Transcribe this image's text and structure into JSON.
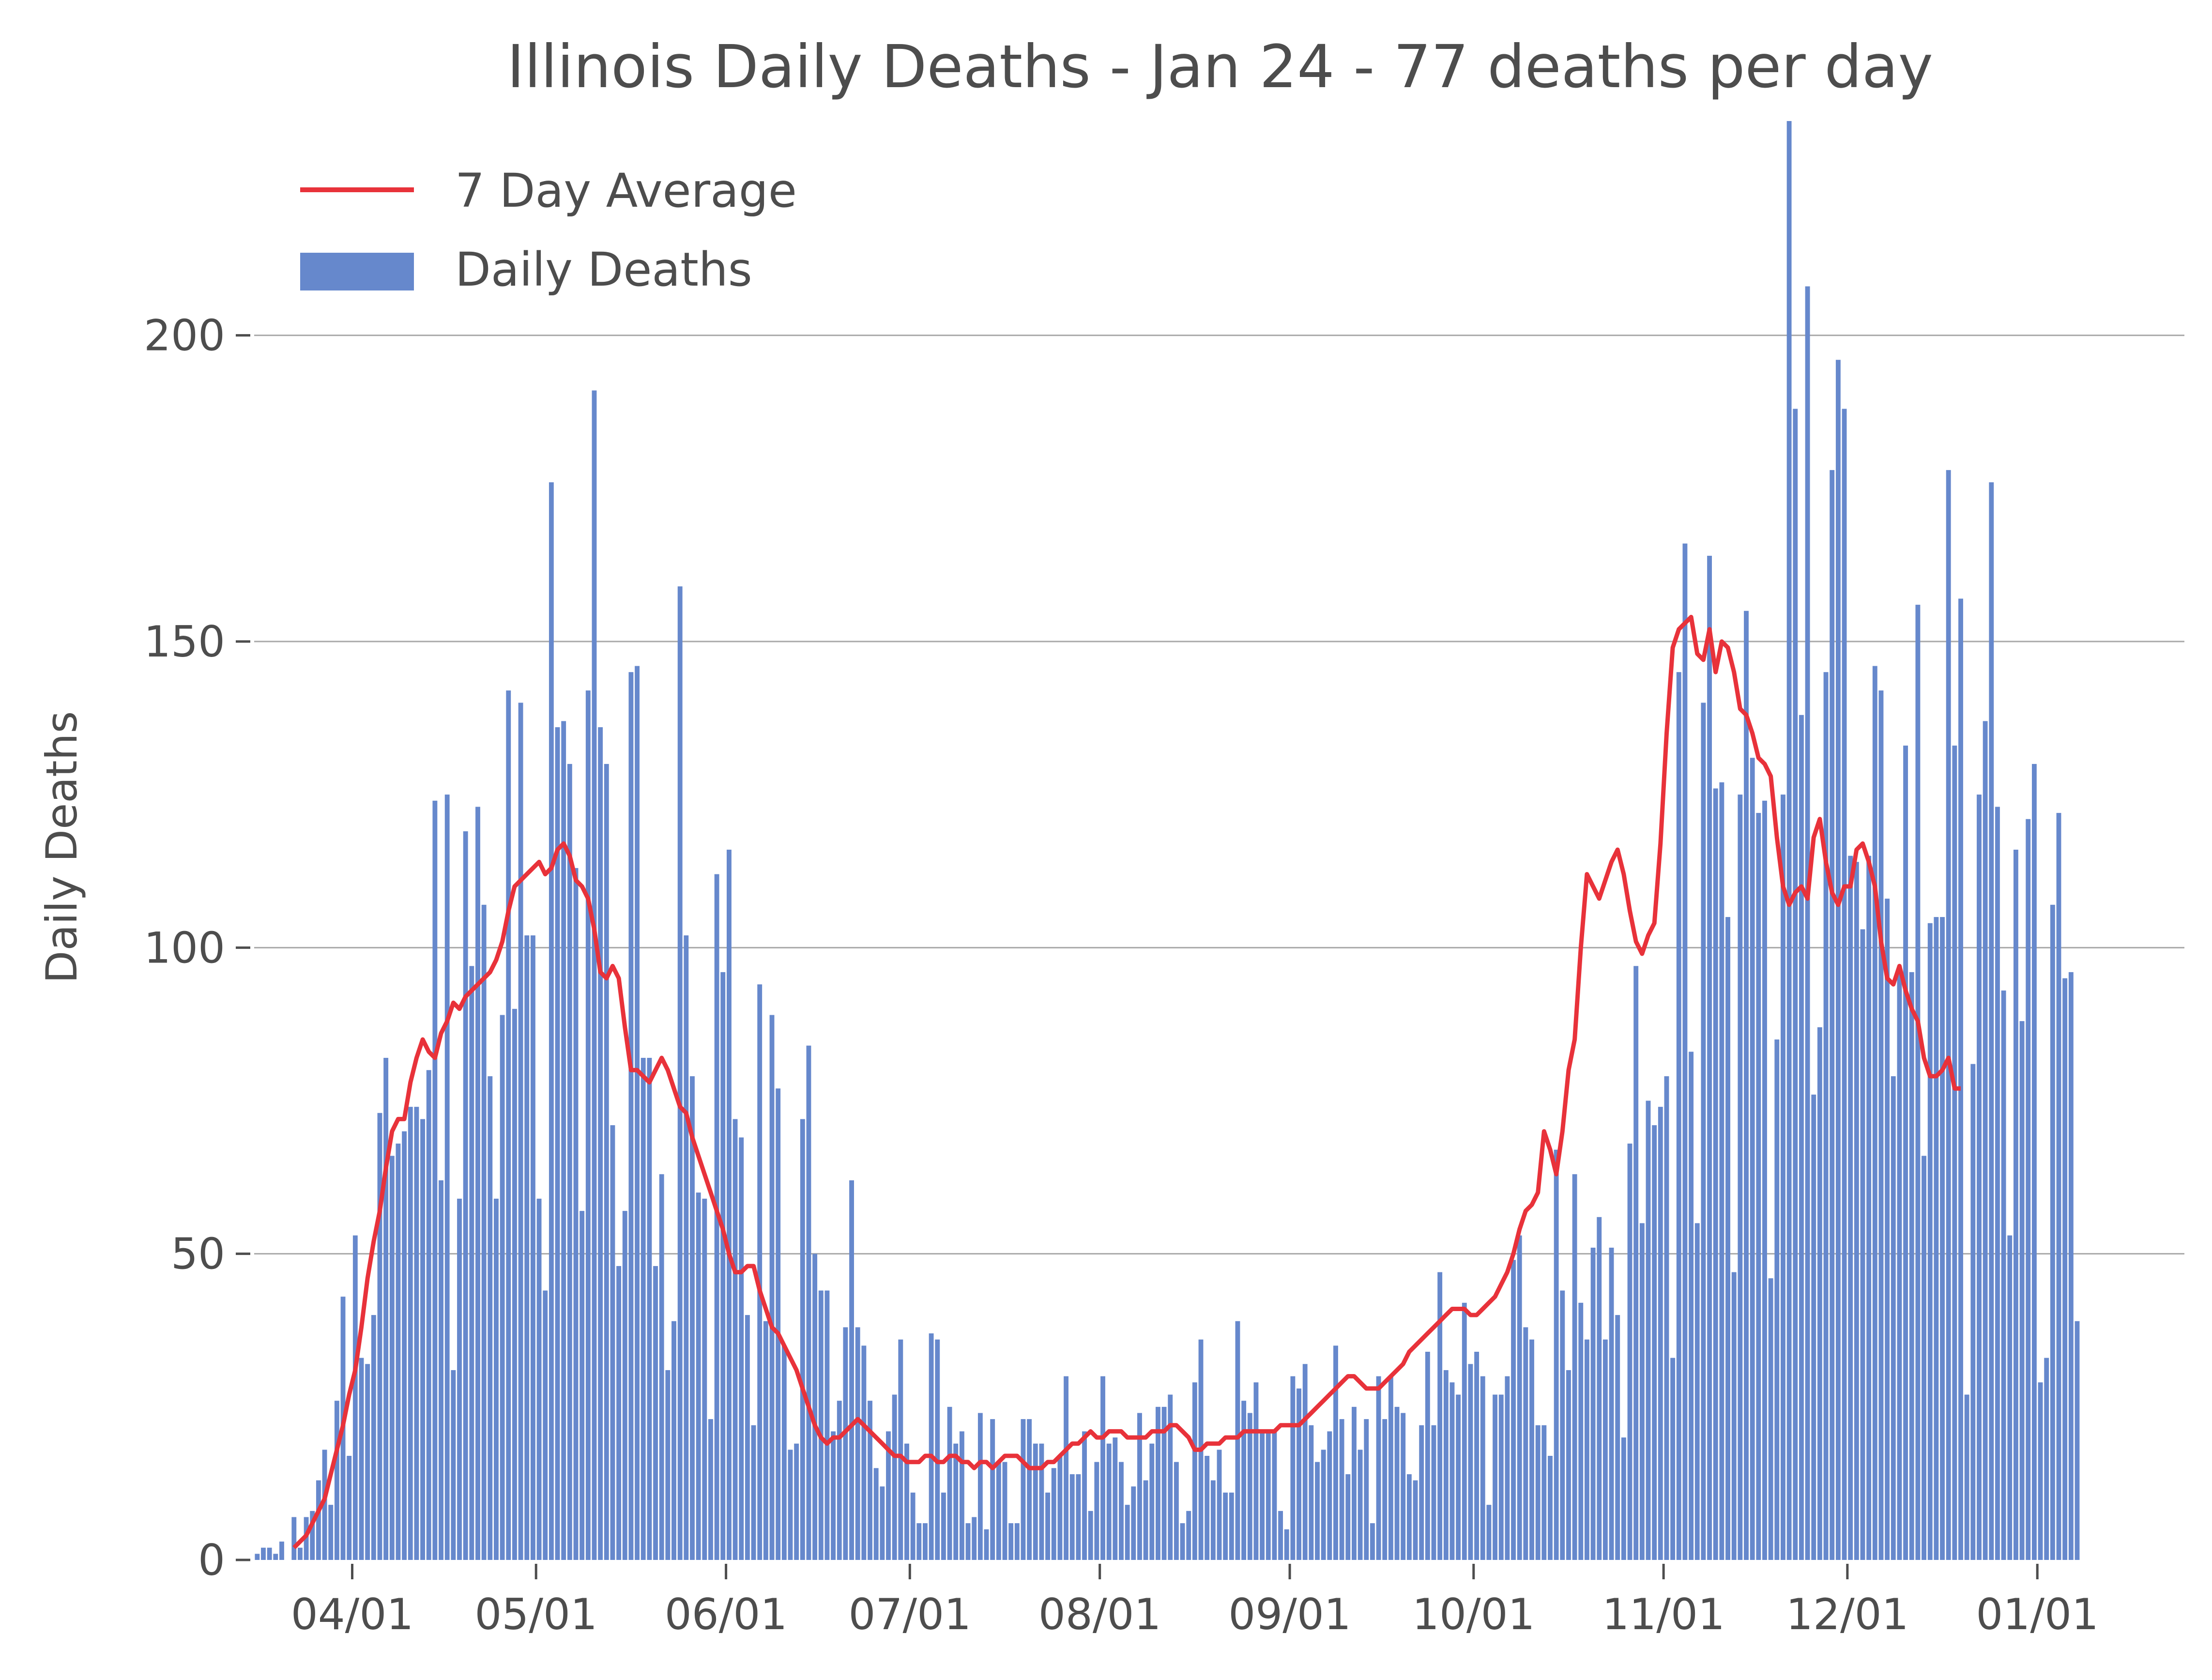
{
  "chart_data": {
    "type": "bar",
    "title": "Illinois Daily Deaths - Jan 24 - 77 deaths per day",
    "ylabel": "Daily Deaths",
    "xlabel": "",
    "ylim": [
      0,
      235
    ],
    "yticks": [
      0,
      50,
      100,
      150,
      200
    ],
    "grid": "horizontal",
    "legend_position": "top-left",
    "x_start": "2020-03-16",
    "x_end": "2021-01-24",
    "xticks": [
      {
        "date": "2020-04-01",
        "label": "04/01"
      },
      {
        "date": "2020-05-01",
        "label": "05/01"
      },
      {
        "date": "2020-06-01",
        "label": "06/01"
      },
      {
        "date": "2020-07-01",
        "label": "07/01"
      },
      {
        "date": "2020-08-01",
        "label": "08/01"
      },
      {
        "date": "2020-09-01",
        "label": "09/01"
      },
      {
        "date": "2020-10-01",
        "label": "10/01"
      },
      {
        "date": "2020-11-01",
        "label": "11/01"
      },
      {
        "date": "2020-12-01",
        "label": "12/01"
      },
      {
        "date": "2021-01-01",
        "label": "01/01"
      }
    ],
    "series": [
      {
        "name": "Daily Deaths",
        "type": "bar",
        "color": "#6688cc",
        "values": [
          1,
          2,
          2,
          1,
          3,
          0,
          7,
          2,
          7,
          8,
          13,
          18,
          9,
          26,
          43,
          17,
          53,
          33,
          32,
          40,
          73,
          82,
          66,
          68,
          70,
          74,
          74,
          72,
          80,
          124,
          62,
          125,
          31,
          59,
          119,
          97,
          123,
          107,
          79,
          59,
          89,
          142,
          90,
          140,
          102,
          102,
          59,
          44,
          176,
          136,
          137,
          130,
          113,
          57,
          142,
          191,
          136,
          130,
          71,
          48,
          57,
          145,
          146,
          82,
          82,
          48,
          63,
          31,
          39,
          159,
          102,
          79,
          60,
          59,
          23,
          112,
          96,
          116,
          72,
          69,
          40,
          22,
          94,
          39,
          89,
          77,
          35,
          18,
          19,
          72,
          84,
          50,
          44,
          44,
          21,
          26,
          38,
          62,
          38,
          35,
          26,
          15,
          12,
          21,
          27,
          36,
          19,
          11,
          6,
          6,
          37,
          36,
          11,
          25,
          19,
          21,
          6,
          7,
          24,
          5,
          23,
          16,
          16,
          6,
          6,
          23,
          23,
          19,
          19,
          11,
          15,
          17,
          30,
          14,
          14,
          21,
          8,
          16,
          30,
          19,
          20,
          16,
          9,
          12,
          24,
          13,
          19,
          25,
          25,
          27,
          16,
          6,
          8,
          29,
          36,
          17,
          13,
          18,
          11,
          11,
          39,
          26,
          24,
          29,
          21,
          21,
          21,
          8,
          5,
          30,
          28,
          32,
          22,
          16,
          18,
          21,
          35,
          23,
          14,
          25,
          18,
          23,
          6,
          30,
          23,
          30,
          25,
          24,
          14,
          13,
          22,
          34,
          22,
          47,
          31,
          29,
          27,
          42,
          32,
          34,
          30,
          9,
          27,
          27,
          30,
          49,
          53,
          38,
          36,
          22,
          22,
          17,
          67,
          44,
          31,
          63,
          42,
          36,
          51,
          56,
          36,
          51,
          40,
          20,
          68,
          97,
          55,
          75,
          71,
          74,
          79,
          33,
          145,
          166,
          83,
          55,
          140,
          164,
          126,
          127,
          105,
          47,
          125,
          155,
          131,
          122,
          124,
          46,
          85,
          125,
          235,
          188,
          138,
          208,
          76,
          87,
          145,
          178,
          196,
          188,
          115,
          114,
          103,
          115,
          146,
          142,
          108,
          79,
          97,
          133,
          96,
          156,
          66,
          104,
          105,
          105,
          178,
          133,
          157,
          27,
          81,
          125,
          137,
          176,
          123,
          93,
          53,
          116,
          88,
          121,
          130,
          29,
          33,
          107,
          122,
          95,
          96,
          39
        ]
      },
      {
        "name": "7 Day Average",
        "type": "line",
        "color": "#e8323a",
        "start_offset": 6,
        "values": [
          2,
          3,
          4,
          6,
          8,
          10,
          14,
          18,
          22,
          27,
          31,
          38,
          46,
          52,
          57,
          64,
          70,
          72,
          72,
          78,
          82,
          85,
          83,
          82,
          86,
          88,
          91,
          90,
          92,
          93,
          94,
          95,
          96,
          98,
          101,
          106,
          110,
          111,
          112,
          113,
          114,
          112,
          113,
          116,
          117,
          115,
          111,
          110,
          108,
          103,
          96,
          95,
          97,
          95,
          87,
          80,
          80,
          79,
          78,
          80,
          82,
          80,
          77,
          74,
          73,
          69,
          66,
          63,
          60,
          57,
          54,
          50,
          47,
          47,
          48,
          48,
          44,
          41,
          38,
          37,
          35,
          33,
          31,
          28,
          25,
          22,
          20,
          19,
          20,
          20,
          21,
          22,
          23,
          22,
          21,
          20,
          19,
          18,
          17,
          17,
          16,
          16,
          16,
          17,
          17,
          16,
          16,
          17,
          17,
          16,
          16,
          15,
          16,
          16,
          15,
          16,
          17,
          17,
          17,
          16,
          15,
          15,
          15,
          16,
          16,
          17,
          18,
          19,
          19,
          20,
          21,
          20,
          20,
          21,
          21,
          21,
          20,
          20,
          20,
          20,
          21,
          21,
          21,
          22,
          22,
          21,
          20,
          18,
          18,
          19,
          19,
          19,
          20,
          20,
          20,
          21,
          21,
          21,
          21,
          21,
          21,
          22,
          22,
          22,
          22,
          23,
          24,
          25,
          26,
          27,
          28,
          29,
          30,
          30,
          29,
          28,
          28,
          28,
          29,
          30,
          31,
          32,
          34,
          35,
          36,
          37,
          38,
          39,
          40,
          41,
          41,
          41,
          40,
          40,
          41,
          42,
          43,
          45,
          47,
          50,
          54,
          57,
          58,
          60,
          70,
          67,
          63,
          70,
          80,
          85,
          100,
          112,
          110,
          108,
          111,
          114,
          116,
          112,
          106,
          101,
          99,
          102,
          104,
          117,
          135,
          149,
          152,
          153,
          154,
          148,
          147,
          152,
          145,
          150,
          149,
          145,
          139,
          138,
          135,
          131,
          130,
          128,
          118,
          110,
          107,
          109,
          110,
          108,
          118,
          121,
          114,
          109,
          107,
          110,
          110,
          116,
          117,
          114,
          110,
          101,
          95,
          94,
          97,
          93,
          90,
          88,
          82,
          79,
          79,
          80,
          82,
          77,
          77
        ]
      }
    ],
    "legend": [
      {
        "label": "7 Day Average",
        "kind": "line",
        "color": "#e8323a"
      },
      {
        "label": "Daily Deaths",
        "kind": "patch",
        "color": "#6688cc"
      }
    ]
  }
}
